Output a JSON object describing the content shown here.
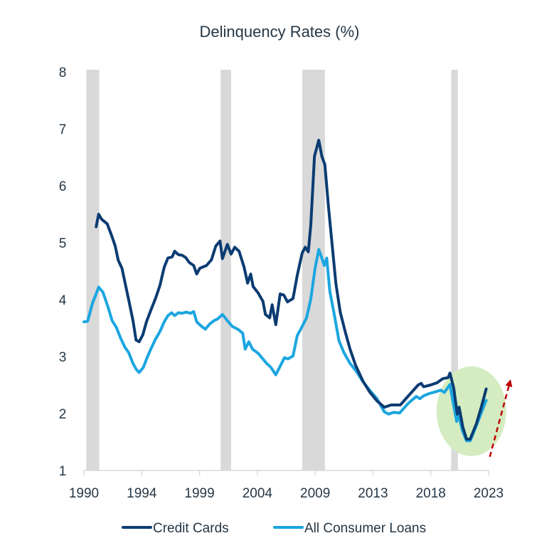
{
  "chart_data": {
    "type": "line",
    "title": "Delinquency Rates (%)",
    "xlabel": "",
    "ylabel": "",
    "xlim": [
      1990,
      2023
    ],
    "ylim": [
      1,
      8
    ],
    "yticks": [
      "1",
      "2",
      "3",
      "4",
      "5",
      "6",
      "7",
      "8"
    ],
    "ytick_values": [
      1,
      2,
      3,
      4,
      5,
      6,
      7,
      8
    ],
    "xtick_labels": [
      "1990",
      "1994",
      "1999",
      "2004",
      "2009",
      "2013",
      "2018",
      "2023"
    ],
    "grid": false,
    "legend_position": "bottom",
    "recessions": [
      {
        "start": 1990.2,
        "end": 1991.25
      },
      {
        "start": 2001.15,
        "end": 2002.0
      },
      {
        "start": 2007.8,
        "end": 2009.65
      },
      {
        "start": 2019.95,
        "end": 2020.5
      }
    ],
    "annotations": [
      {
        "type": "ellipse-highlight",
        "label": "",
        "x_center": 2021.6,
        "y_center": 2.04,
        "color": "#d5ecc1"
      },
      {
        "type": "dashed-arrow",
        "label": "",
        "from": [
          2023.1,
          1.24
        ],
        "to": [
          2024.8,
          2.6
        ],
        "color": "#c00000"
      }
    ],
    "series": [
      {
        "name": "Credit Cards",
        "color": "#0b3c72",
        "points": [
          [
            1991.0,
            5.28
          ],
          [
            1991.2,
            5.5
          ],
          [
            1991.45,
            5.41
          ],
          [
            1991.9,
            5.33
          ],
          [
            1992.3,
            5.1
          ],
          [
            1992.55,
            4.94
          ],
          [
            1992.8,
            4.69
          ],
          [
            1993.1,
            4.55
          ],
          [
            1993.4,
            4.25
          ],
          [
            1993.65,
            4.0
          ],
          [
            1994.0,
            3.63
          ],
          [
            1994.25,
            3.29
          ],
          [
            1994.5,
            3.26
          ],
          [
            1994.8,
            3.38
          ],
          [
            1995.1,
            3.61
          ],
          [
            1995.45,
            3.81
          ],
          [
            1995.85,
            4.03
          ],
          [
            1996.2,
            4.25
          ],
          [
            1996.55,
            4.57
          ],
          [
            1996.85,
            4.73
          ],
          [
            1997.2,
            4.75
          ],
          [
            1997.4,
            4.85
          ],
          [
            1997.7,
            4.79
          ],
          [
            1998.0,
            4.78
          ],
          [
            1998.3,
            4.74
          ],
          [
            1998.6,
            4.65
          ],
          [
            1998.95,
            4.6
          ],
          [
            1999.2,
            4.45
          ],
          [
            1999.45,
            4.55
          ],
          [
            2000.0,
            4.6
          ],
          [
            2000.4,
            4.7
          ],
          [
            2000.75,
            4.94
          ],
          [
            2001.1,
            5.03
          ],
          [
            2001.3,
            4.72
          ],
          [
            2001.7,
            4.97
          ],
          [
            2002.0,
            4.8
          ],
          [
            2002.3,
            4.92
          ],
          [
            2002.65,
            4.85
          ],
          [
            2003.05,
            4.58
          ],
          [
            2003.35,
            4.29
          ],
          [
            2003.6,
            4.45
          ],
          [
            2003.8,
            4.23
          ],
          [
            2004.2,
            4.12
          ],
          [
            2004.6,
            3.97
          ],
          [
            2004.8,
            3.74
          ],
          [
            2005.15,
            3.68
          ],
          [
            2005.35,
            3.91
          ],
          [
            2005.65,
            3.56
          ],
          [
            2006.0,
            4.1
          ],
          [
            2006.3,
            4.08
          ],
          [
            2006.6,
            3.96
          ],
          [
            2007.05,
            4.02
          ],
          [
            2007.4,
            4.43
          ],
          [
            2007.8,
            4.82
          ],
          [
            2008.05,
            4.92
          ],
          [
            2008.3,
            4.84
          ],
          [
            2008.5,
            5.31
          ],
          [
            2008.8,
            6.52
          ],
          [
            2009.15,
            6.8
          ],
          [
            2009.4,
            6.52
          ],
          [
            2009.65,
            6.37
          ],
          [
            2009.95,
            5.61
          ],
          [
            2010.25,
            4.94
          ],
          [
            2010.55,
            4.28
          ],
          [
            2010.9,
            3.78
          ],
          [
            2011.3,
            3.44
          ],
          [
            2011.7,
            3.13
          ],
          [
            2012.15,
            2.85
          ],
          [
            2012.75,
            2.57
          ],
          [
            2013.3,
            2.38
          ],
          [
            2013.9,
            2.22
          ],
          [
            2014.5,
            2.11
          ],
          [
            2015.05,
            2.15
          ],
          [
            2015.8,
            2.15
          ],
          [
            2016.5,
            2.32
          ],
          [
            2017.25,
            2.5
          ],
          [
            2017.5,
            2.53
          ],
          [
            2017.7,
            2.47
          ],
          [
            2018.25,
            2.5
          ],
          [
            2018.8,
            2.54
          ],
          [
            2019.25,
            2.61
          ],
          [
            2019.7,
            2.63
          ],
          [
            2019.85,
            2.71
          ],
          [
            2020.15,
            2.45
          ],
          [
            2020.45,
            1.99
          ],
          [
            2020.6,
            2.11
          ],
          [
            2020.9,
            1.76
          ],
          [
            2021.2,
            1.55
          ],
          [
            2021.5,
            1.55
          ],
          [
            2022.0,
            1.82
          ],
          [
            2022.4,
            2.11
          ],
          [
            2022.8,
            2.43
          ]
        ]
      },
      {
        "name": "All Consumer Loans",
        "color": "#1ba6e0",
        "points": [
          [
            1990.0,
            3.61
          ],
          [
            1990.3,
            3.62
          ],
          [
            1990.7,
            3.94
          ],
          [
            1991.0,
            4.1
          ],
          [
            1991.2,
            4.22
          ],
          [
            1991.55,
            4.13
          ],
          [
            1991.95,
            3.88
          ],
          [
            1992.3,
            3.63
          ],
          [
            1992.65,
            3.51
          ],
          [
            1993.0,
            3.32
          ],
          [
            1993.35,
            3.16
          ],
          [
            1993.65,
            3.07
          ],
          [
            1994.0,
            2.88
          ],
          [
            1994.25,
            2.78
          ],
          [
            1994.5,
            2.72
          ],
          [
            1994.85,
            2.81
          ],
          [
            1995.15,
            2.98
          ],
          [
            1995.45,
            3.13
          ],
          [
            1995.8,
            3.29
          ],
          [
            1996.2,
            3.44
          ],
          [
            1996.55,
            3.61
          ],
          [
            1996.85,
            3.72
          ],
          [
            1997.15,
            3.77
          ],
          [
            1997.4,
            3.72
          ],
          [
            1997.7,
            3.77
          ],
          [
            1998.0,
            3.76
          ],
          [
            1998.35,
            3.78
          ],
          [
            1998.7,
            3.76
          ],
          [
            1998.95,
            3.79
          ],
          [
            1999.2,
            3.61
          ],
          [
            1999.6,
            3.53
          ],
          [
            1999.9,
            3.48
          ],
          [
            2000.25,
            3.57
          ],
          [
            2000.6,
            3.63
          ],
          [
            2000.9,
            3.66
          ],
          [
            2001.3,
            3.74
          ],
          [
            2001.7,
            3.63
          ],
          [
            2002.1,
            3.53
          ],
          [
            2002.55,
            3.48
          ],
          [
            2002.95,
            3.41
          ],
          [
            2003.15,
            3.13
          ],
          [
            2003.45,
            3.26
          ],
          [
            2003.75,
            3.13
          ],
          [
            2004.2,
            3.06
          ],
          [
            2004.55,
            2.97
          ],
          [
            2004.9,
            2.88
          ],
          [
            2005.25,
            2.81
          ],
          [
            2005.65,
            2.68
          ],
          [
            2006.05,
            2.85
          ],
          [
            2006.35,
            2.98
          ],
          [
            2006.65,
            2.96
          ],
          [
            2007.05,
            3.01
          ],
          [
            2007.4,
            3.37
          ],
          [
            2007.75,
            3.51
          ],
          [
            2008.15,
            3.68
          ],
          [
            2008.5,
            4.01
          ],
          [
            2008.85,
            4.55
          ],
          [
            2009.15,
            4.88
          ],
          [
            2009.4,
            4.73
          ],
          [
            2009.6,
            4.6
          ],
          [
            2009.8,
            4.73
          ],
          [
            2010.05,
            4.15
          ],
          [
            2010.4,
            3.76
          ],
          [
            2010.8,
            3.28
          ],
          [
            2011.2,
            3.07
          ],
          [
            2011.7,
            2.88
          ],
          [
            2012.15,
            2.76
          ],
          [
            2012.75,
            2.56
          ],
          [
            2013.3,
            2.41
          ],
          [
            2013.9,
            2.26
          ],
          [
            2014.5,
            2.03
          ],
          [
            2014.85,
            1.99
          ],
          [
            2015.25,
            2.02
          ],
          [
            2015.75,
            2.01
          ],
          [
            2016.45,
            2.18
          ],
          [
            2017.1,
            2.3
          ],
          [
            2017.4,
            2.26
          ],
          [
            2017.7,
            2.31
          ],
          [
            2018.15,
            2.35
          ],
          [
            2018.65,
            2.38
          ],
          [
            2019.1,
            2.41
          ],
          [
            2019.4,
            2.37
          ],
          [
            2019.75,
            2.48
          ],
          [
            2019.85,
            2.51
          ],
          [
            2020.1,
            2.2
          ],
          [
            2020.4,
            1.86
          ],
          [
            2020.55,
            1.99
          ],
          [
            2020.85,
            1.71
          ],
          [
            2021.2,
            1.52
          ],
          [
            2021.5,
            1.52
          ],
          [
            2021.95,
            1.76
          ],
          [
            2022.4,
            2.01
          ],
          [
            2022.8,
            2.23
          ]
        ]
      }
    ]
  },
  "colors": {
    "text": "#253746",
    "axis": "#d9d9d9",
    "recession": "#d9d9d9",
    "highlight": "#d5ecc1",
    "arrow": "#c00000"
  }
}
